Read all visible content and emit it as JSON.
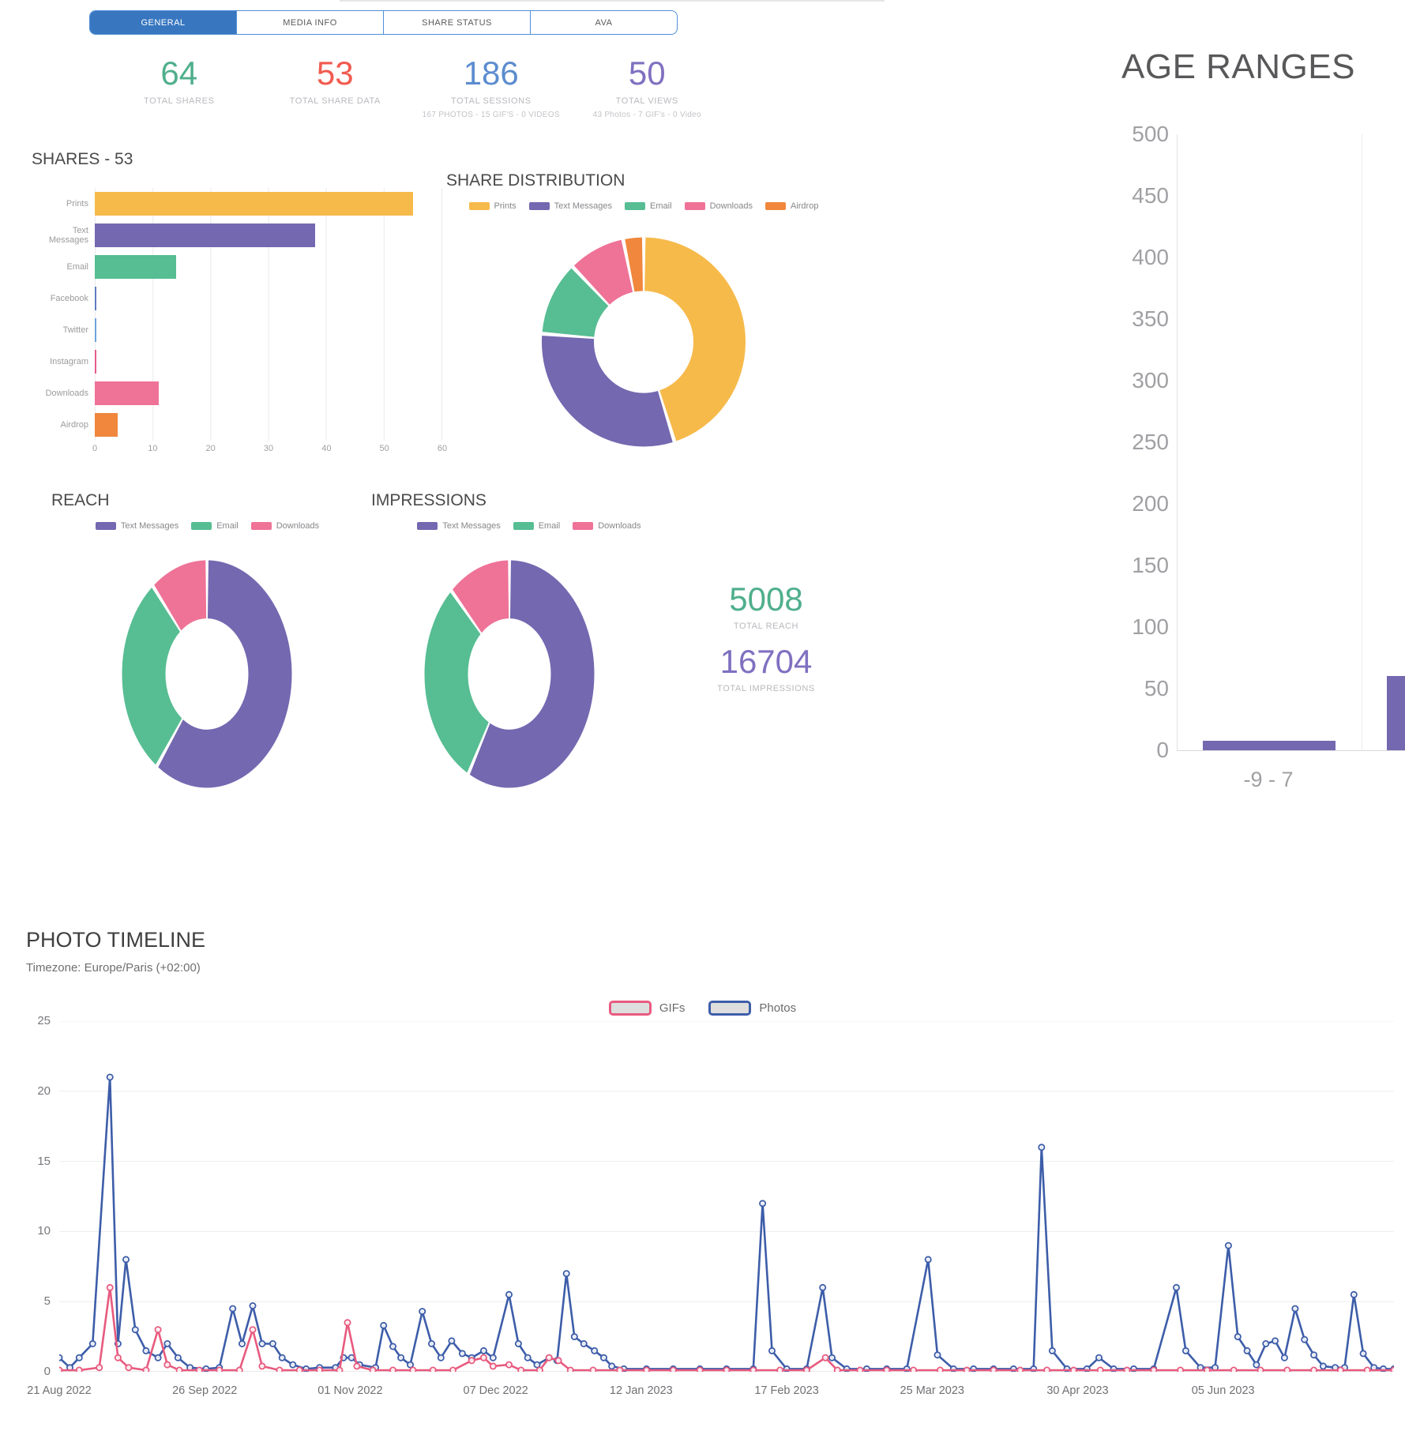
{
  "tabs": {
    "items": [
      {
        "label": "GENERAL",
        "active": true
      },
      {
        "label": "MEDIA INFO",
        "active": false
      },
      {
        "label": "SHARE STATUS",
        "active": false
      },
      {
        "label": "AVA",
        "active": false
      }
    ]
  },
  "colors": {
    "tab_active_bg": "#3877c0",
    "stat_green": "#4faf8c",
    "stat_red": "#f15b50",
    "stat_blue": "#5c8ccf",
    "stat_purple": "#8070c0",
    "prints": "#f6ba4b",
    "text_messages": "#7468b0",
    "email": "#57bd93",
    "downloads": "#ef7297",
    "airdrop": "#f0873d",
    "photos_line": "#3d5da9",
    "gifs_line": "#e85a7e"
  },
  "stats": [
    {
      "value": "64",
      "label": "TOTAL SHARES",
      "color": "#4faf8c",
      "sub": ""
    },
    {
      "value": "53",
      "label": "TOTAL SHARE DATA",
      "color": "#f15b50",
      "sub": ""
    },
    {
      "value": "186",
      "label": "TOTAL SESSIONS",
      "color": "#5c8ccf",
      "sub": "167 PHOTOS - 15 GIF'S - 0 VIDEOS"
    },
    {
      "value": "50",
      "label": "TOTAL VIEWS",
      "color": "#8070c0",
      "sub": "43 Photos - 7 GIF's - 0 Video"
    }
  ],
  "sections": {
    "shares_title": "SHARES - 53",
    "distribution_title": "SHARE DISTRIBUTION",
    "reach_title": "REACH",
    "impressions_title": "IMPRESSIONS",
    "age_title": "AGE RANGES",
    "timeline_title": "PHOTO TIMELINE",
    "timeline_subtitle": "Timezone: Europe/Paris (+02:00)"
  },
  "totals": {
    "reach_value": "5008",
    "reach_label": "TOTAL REACH",
    "impressions_value": "16704",
    "impressions_label": "TOTAL IMPRESSIONS"
  },
  "chart_data": [
    {
      "id": "shares",
      "type": "bar",
      "orientation": "horizontal",
      "title": "SHARES - 53",
      "categories": [
        "Prints",
        "Text Messages",
        "Email",
        "Facebook",
        "Twitter",
        "Instagram",
        "Downloads",
        "Airdrop"
      ],
      "values": [
        55,
        38,
        14,
        0.3,
        0.3,
        0.3,
        11,
        4
      ],
      "colors": [
        "#f6ba4b",
        "#7468b0",
        "#57bd93",
        "#5f7dbf",
        "#6fa3dc",
        "#e85c8a",
        "#ef7297",
        "#f0873d"
      ],
      "xlim": [
        0,
        60
      ],
      "xticks": [
        0,
        10,
        20,
        30,
        40,
        50,
        60
      ],
      "grid": true
    },
    {
      "id": "distribution",
      "type": "pie",
      "title": "SHARE DISTRIBUTION",
      "labels": [
        "Prints",
        "Text Messages",
        "Email",
        "Downloads",
        "Airdrop"
      ],
      "values": [
        55,
        38,
        14,
        11,
        4
      ],
      "colors": [
        "#f6ba4b",
        "#7468b0",
        "#57bd93",
        "#ef7297",
        "#f0873d"
      ],
      "legend_position": "top",
      "donut": true
    },
    {
      "id": "reach",
      "type": "pie",
      "title": "REACH",
      "labels": [
        "Text Messages",
        "Email",
        "Downloads"
      ],
      "values": [
        60,
        29,
        11
      ],
      "colors": [
        "#7468b0",
        "#57bd93",
        "#ef7297"
      ],
      "legend_position": "top",
      "donut": true,
      "total": 5008
    },
    {
      "id": "impressions",
      "type": "pie",
      "title": "IMPRESSIONS",
      "labels": [
        "Text Messages",
        "Email",
        "Downloads"
      ],
      "values": [
        58,
        30,
        12
      ],
      "colors": [
        "#7468b0",
        "#57bd93",
        "#ef7297"
      ],
      "legend_position": "top",
      "donut": true,
      "total": 16704
    },
    {
      "id": "age",
      "type": "bar",
      "orientation": "vertical",
      "title": "AGE RANGES",
      "categories": [
        "-9 - 7",
        ""
      ],
      "values": [
        8,
        60
      ],
      "bar_color": "#7468b0",
      "ylim": [
        0,
        500
      ],
      "ytick_step": 50,
      "grid": true
    },
    {
      "id": "timeline",
      "type": "line",
      "title": "PHOTO TIMELINE",
      "subtitle": "Timezone: Europe/Paris (+02:00)",
      "ylim": [
        0,
        25
      ],
      "yticks": [
        0,
        5,
        10,
        15,
        20,
        25
      ],
      "xticklabels": [
        "21 Aug 2022",
        "26 Sep 2022",
        "01 Nov 2022",
        "07 Dec 2022",
        "12 Jan 2023",
        "17 Feb 2023",
        "25 Mar 2023",
        "30 Apr 2023",
        "05 Jun 2023"
      ],
      "xtick_pct": [
        0,
        10.9,
        21.8,
        32.7,
        43.6,
        54.5,
        65.4,
        76.3,
        87.2
      ],
      "legend_position": "top",
      "series": [
        {
          "name": "GIFs",
          "color": "#e85a7e",
          "points": [
            [
              0,
              0.1
            ],
            [
              1.5,
              0.1
            ],
            [
              3,
              0.3
            ],
            [
              3.8,
              6
            ],
            [
              4.4,
              1
            ],
            [
              5.2,
              0.3
            ],
            [
              6.5,
              0.1
            ],
            [
              7.4,
              3
            ],
            [
              8.1,
              0.5
            ],
            [
              9,
              0.1
            ],
            [
              10.5,
              0.1
            ],
            [
              12,
              0.1
            ],
            [
              13.5,
              0.1
            ],
            [
              14.5,
              3
            ],
            [
              15.2,
              0.4
            ],
            [
              16.5,
              0.1
            ],
            [
              18,
              0.1
            ],
            [
              19.5,
              0.1
            ],
            [
              21,
              0.1
            ],
            [
              21.6,
              3.5
            ],
            [
              22.3,
              0.4
            ],
            [
              23.5,
              0.1
            ],
            [
              25,
              0.1
            ],
            [
              26.5,
              0.1
            ],
            [
              28,
              0.1
            ],
            [
              29.5,
              0.1
            ],
            [
              30.9,
              0.8
            ],
            [
              31.8,
              1
            ],
            [
              32.5,
              0.4
            ],
            [
              33.7,
              0.5
            ],
            [
              34.6,
              0.1
            ],
            [
              36,
              0.1
            ],
            [
              36.7,
              1
            ],
            [
              37.4,
              0.8
            ],
            [
              38.3,
              0.1
            ],
            [
              40,
              0.1
            ],
            [
              42,
              0.1
            ],
            [
              44,
              0.1
            ],
            [
              46,
              0.1
            ],
            [
              48,
              0.1
            ],
            [
              50,
              0.1
            ],
            [
              52,
              0.1
            ],
            [
              54,
              0.1
            ],
            [
              56,
              0.1
            ],
            [
              57.4,
              1
            ],
            [
              58.3,
              0.1
            ],
            [
              60,
              0.1
            ],
            [
              62,
              0.1
            ],
            [
              64,
              0.1
            ],
            [
              66,
              0.1
            ],
            [
              68,
              0.1
            ],
            [
              70,
              0.1
            ],
            [
              72,
              0.1
            ],
            [
              74,
              0.1
            ],
            [
              76,
              0.1
            ],
            [
              78,
              0.1
            ],
            [
              80,
              0.1
            ],
            [
              82,
              0.1
            ],
            [
              84,
              0.1
            ],
            [
              86,
              0.1
            ],
            [
              88,
              0.1
            ],
            [
              90,
              0.1
            ],
            [
              92,
              0.1
            ],
            [
              94,
              0.1
            ],
            [
              96,
              0.1
            ],
            [
              98,
              0.1
            ],
            [
              100,
              0.1
            ]
          ]
        },
        {
          "name": "Photos",
          "color": "#3d5da9",
          "points": [
            [
              0,
              1
            ],
            [
              0.8,
              0.3
            ],
            [
              1.5,
              1
            ],
            [
              2.5,
              2
            ],
            [
              3.8,
              21
            ],
            [
              4.4,
              2
            ],
            [
              5,
              8
            ],
            [
              5.7,
              3
            ],
            [
              6.5,
              1.5
            ],
            [
              7.4,
              1
            ],
            [
              8.1,
              2
            ],
            [
              8.9,
              1
            ],
            [
              9.8,
              0.3
            ],
            [
              11,
              0.2
            ],
            [
              12,
              0.3
            ],
            [
              13,
              4.5
            ],
            [
              13.7,
              2
            ],
            [
              14.5,
              4.7
            ],
            [
              15.2,
              2
            ],
            [
              16,
              2
            ],
            [
              16.7,
              1
            ],
            [
              17.5,
              0.5
            ],
            [
              18.5,
              0.2
            ],
            [
              19.5,
              0.3
            ],
            [
              20.7,
              0.3
            ],
            [
              21.3,
              1
            ],
            [
              21.9,
              1
            ],
            [
              22.5,
              0.5
            ],
            [
              23.7,
              0.3
            ],
            [
              24.3,
              3.3
            ],
            [
              25,
              1.8
            ],
            [
              25.6,
              1
            ],
            [
              26.3,
              0.5
            ],
            [
              27.2,
              4.3
            ],
            [
              27.9,
              2
            ],
            [
              28.6,
              1
            ],
            [
              29.4,
              2.2
            ],
            [
              30.2,
              1.3
            ],
            [
              30.9,
              1
            ],
            [
              31.8,
              1.5
            ],
            [
              32.5,
              1
            ],
            [
              33.7,
              5.5
            ],
            [
              34.4,
              2
            ],
            [
              35.1,
              1
            ],
            [
              35.8,
              0.5
            ],
            [
              36.7,
              1
            ],
            [
              37.3,
              0.8
            ],
            [
              38,
              7
            ],
            [
              38.6,
              2.5
            ],
            [
              39.3,
              2
            ],
            [
              40.1,
              1.5
            ],
            [
              40.8,
              1
            ],
            [
              41.4,
              0.4
            ],
            [
              42.3,
              0.2
            ],
            [
              44,
              0.2
            ],
            [
              46,
              0.2
            ],
            [
              48,
              0.2
            ],
            [
              50,
              0.2
            ],
            [
              52,
              0.2
            ],
            [
              52.7,
              12
            ],
            [
              53.4,
              1.5
            ],
            [
              54.5,
              0.2
            ],
            [
              56,
              0.2
            ],
            [
              57.2,
              6
            ],
            [
              57.9,
              1
            ],
            [
              59,
              0.2
            ],
            [
              60.5,
              0.2
            ],
            [
              62,
              0.2
            ],
            [
              63.5,
              0.2
            ],
            [
              65.1,
              8
            ],
            [
              65.8,
              1.2
            ],
            [
              67,
              0.2
            ],
            [
              68.5,
              0.2
            ],
            [
              70,
              0.2
            ],
            [
              71.5,
              0.2
            ],
            [
              73,
              0.2
            ],
            [
              73.6,
              16
            ],
            [
              74.4,
              1.5
            ],
            [
              75.5,
              0.2
            ],
            [
              77,
              0.2
            ],
            [
              77.9,
              1
            ],
            [
              79,
              0.2
            ],
            [
              80.5,
              0.2
            ],
            [
              82,
              0.2
            ],
            [
              83.7,
              6
            ],
            [
              84.4,
              1.5
            ],
            [
              85.5,
              0.3
            ],
            [
              86.6,
              0.3
            ],
            [
              87.6,
              9
            ],
            [
              88.3,
              2.5
            ],
            [
              89,
              1.5
            ],
            [
              89.7,
              0.5
            ],
            [
              90.4,
              2
            ],
            [
              91.1,
              2.2
            ],
            [
              91.8,
              1
            ],
            [
              92.6,
              4.5
            ],
            [
              93.3,
              2.3
            ],
            [
              94,
              1.2
            ],
            [
              94.7,
              0.4
            ],
            [
              95.6,
              0.3
            ],
            [
              96.3,
              0.3
            ],
            [
              97,
              5.5
            ],
            [
              97.7,
              1.3
            ],
            [
              98.5,
              0.3
            ],
            [
              99.2,
              0.2
            ],
            [
              100,
              0.2
            ]
          ]
        }
      ]
    }
  ]
}
